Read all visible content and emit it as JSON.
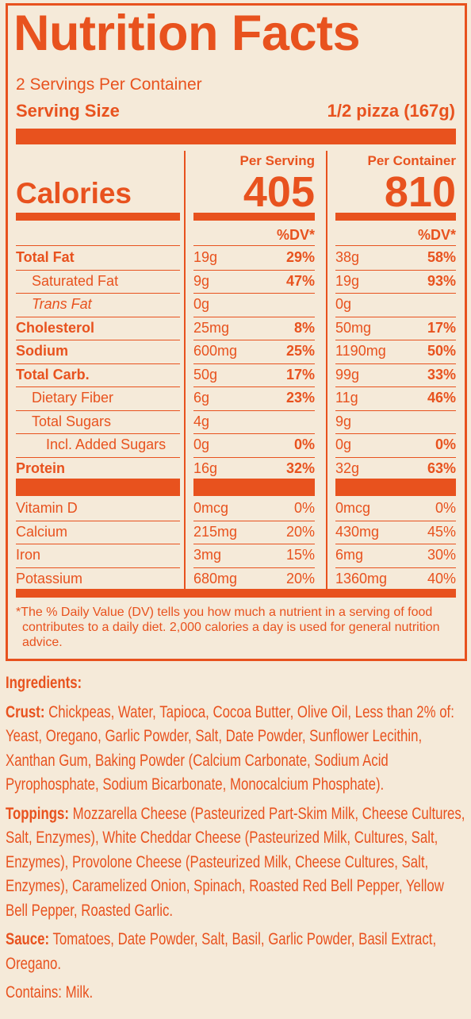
{
  "title": "Nutrition Facts",
  "servings": "2 Servings Per Container",
  "serving_size_label": "Serving Size",
  "serving_size": "1/2 pizza (167g)",
  "columns": [
    "Per Serving",
    "Per Container"
  ],
  "calories_label": "Calories",
  "calories": [
    405,
    810
  ],
  "dv_header": "%DV*",
  "nutrients": [
    {
      "name": "Total Fat",
      "amounts": [
        "19g",
        "38g"
      ],
      "dv": [
        "29%",
        "58%"
      ]
    },
    {
      "name": "Saturated Fat",
      "amounts": [
        "9g",
        "19g"
      ],
      "dv": [
        "47%",
        "93%"
      ]
    },
    {
      "name": "Trans Fat",
      "amounts": [
        "0g",
        "0g"
      ],
      "dv": [
        null,
        null
      ]
    },
    {
      "name": "Cholesterol",
      "amounts": [
        "25mg",
        "50mg"
      ],
      "dv": [
        "8%",
        "17%"
      ]
    },
    {
      "name": "Sodium",
      "amounts": [
        "600mg",
        "1190mg"
      ],
      "dv": [
        "25%",
        "50%"
      ]
    },
    {
      "name": "Total Carb.",
      "amounts": [
        "50g",
        "99g"
      ],
      "dv": [
        "17%",
        "33%"
      ]
    },
    {
      "name": "Dietary Fiber",
      "amounts": [
        "6g",
        "11g"
      ],
      "dv": [
        "23%",
        "46%"
      ]
    },
    {
      "name": "Total Sugars",
      "amounts": [
        "4g",
        "9g"
      ],
      "dv": [
        null,
        null
      ]
    },
    {
      "name": "Incl. Added Sugars",
      "amounts": [
        "0g",
        "0g"
      ],
      "dv": [
        "0%",
        "0%"
      ]
    },
    {
      "name": "Protein",
      "amounts": [
        "16g",
        "32g"
      ],
      "dv": [
        "32%",
        "63%"
      ]
    }
  ],
  "vitamins": [
    {
      "name": "Vitamin D",
      "amounts": [
        "0mcg",
        "0mcg"
      ],
      "dv": [
        "0%",
        "0%"
      ]
    },
    {
      "name": "Calcium",
      "amounts": [
        "215mg",
        "430mg"
      ],
      "dv": [
        "20%",
        "45%"
      ]
    },
    {
      "name": "Iron",
      "amounts": [
        "3mg",
        "6mg"
      ],
      "dv": [
        "15%",
        "30%"
      ]
    },
    {
      "name": "Potassium",
      "amounts": [
        "680mg",
        "1360mg"
      ],
      "dv": [
        "20%",
        "40%"
      ]
    }
  ],
  "footnote": "*The % Daily Value (DV) tells you how much a nutrient in a serving of food contributes to a daily diet. 2,000 calories a day is used for general nutrition advice.",
  "ingredients": {
    "heading": "Ingredients:",
    "sections": [
      {
        "label": "Crust:",
        "text": "Chickpeas, Water, Tapioca, Cocoa Butter, Olive Oil, Less than 2% of: Yeast, Oregano, Garlic Powder, Salt, Date Powder, Sunflower Lecithin, Xanthan Gum, Baking Powder (Calcium Carbonate, Sodium Acid Pyrophosphate, Sodium Bicarbonate, Monocalcium Phosphate)."
      },
      {
        "label": "Toppings:",
        "text": "Mozzarella Cheese (Pasteurized Part-Skim Milk, Cheese Cultures, Salt, Enzymes), White Cheddar Cheese (Pasteurized Milk, Cultures, Salt, Enzymes), Provolone Cheese (Pasteurized Milk, Cheese Cultures, Salt, Enzymes), Caramelized Onion, Spinach, Roasted Red Bell Pepper, Yellow Bell Pepper, Roasted Garlic."
      },
      {
        "label": "Sauce:",
        "text": "Tomatoes, Date Powder, Salt, Basil, Garlic Powder, Basil Extract, Oregano."
      }
    ],
    "contains": "Contains: Milk."
  }
}
